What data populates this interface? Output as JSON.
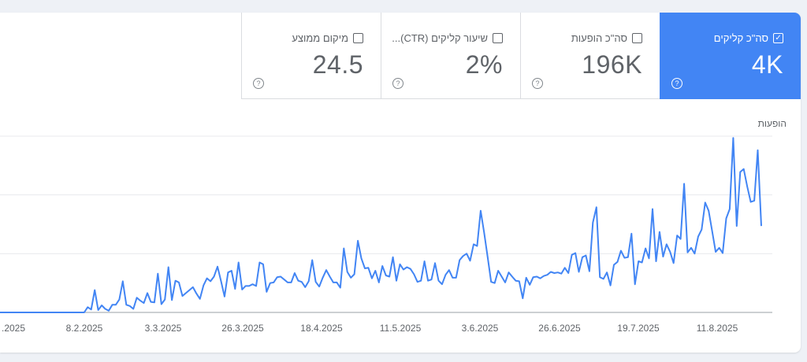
{
  "metrics": [
    {
      "label": "סה\"כ קליקים",
      "value": "4K",
      "checked": true
    },
    {
      "label": "סה\"כ הופעות",
      "value": "196K",
      "checked": false
    },
    {
      "label": "שיעור קליקים (CTR)...",
      "value": "2%",
      "checked": false
    },
    {
      "label": "מיקום ממוצע",
      "value": "24.5",
      "checked": false
    }
  ],
  "icons": {
    "checkbox_checked": "checkbox-checked-icon",
    "checkbox": "checkbox-icon",
    "help": "help-icon"
  },
  "help_glyph": "?",
  "colors": {
    "accent": "#4285f4",
    "line": "#4285f4",
    "grid": "#e8eaed"
  },
  "y_axis_title": "הופעות",
  "chart_data": {
    "type": "line",
    "title": "",
    "xlabel": "",
    "ylabel": "",
    "x_ticks": [
      ".2025",
      "8.2.2025",
      "3.3.2025",
      "26.3.2025",
      "18.4.2025",
      "11.5.2025",
      "3.6.2025",
      "26.6.2025",
      "19.7.2025",
      "11.8.2025"
    ],
    "x_start": "13.1.2025",
    "x_end": "20.8.2025",
    "ylim": [
      0,
      3
    ],
    "grid": true,
    "series": [
      {
        "values": [
          0,
          0,
          0,
          0,
          0,
          0,
          0,
          0,
          0,
          0,
          0,
          0,
          0,
          0,
          0,
          0,
          0,
          0,
          0,
          0,
          0,
          0,
          0,
          0,
          0,
          0.09,
          0.05,
          0.38,
          0.04,
          0.12,
          0.06,
          0.03,
          0.13,
          0.13,
          0.22,
          0.53,
          0.13,
          0.11,
          0.06,
          0.25,
          0.2,
          0.16,
          0.33,
          0.18,
          0.17,
          0.66,
          0.14,
          0.22,
          0.77,
          0.21,
          0.54,
          0.51,
          0.28,
          0.33,
          0.38,
          0.43,
          0.32,
          0.23,
          0.46,
          0.58,
          0.53,
          0.61,
          0.78,
          0.53,
          0.27,
          0.68,
          0.71,
          0.4,
          0.85,
          0.39,
          0.45,
          0.45,
          0.48,
          0.45,
          0.85,
          0.82,
          0.35,
          0.5,
          0.51,
          0.6,
          0.61,
          0.56,
          0.51,
          0.51,
          0.67,
          0.54,
          0.52,
          0.43,
          0.53,
          0.89,
          0.52,
          0.44,
          0.59,
          0.72,
          0.61,
          0.51,
          0.51,
          0.42,
          1.09,
          0.69,
          0.59,
          0.65,
          1.22,
          0.92,
          0.75,
          0.76,
          0.58,
          0.71,
          0.51,
          0.79,
          0.63,
          0.61,
          0.94,
          0.54,
          0.82,
          0.73,
          0.77,
          0.74,
          0.65,
          0.52,
          0.54,
          0.87,
          0.54,
          0.56,
          0.84,
          0.54,
          0.48,
          0.64,
          0.72,
          0.59,
          0.59,
          0.89,
          0.96,
          1.0,
          0.88,
          1.16,
          1.13,
          1.73,
          1.36,
          0.94,
          0.52,
          0.5,
          0.71,
          0.61,
          0.51,
          0.68,
          0.61,
          0.54,
          0.53,
          0.24,
          0.59,
          0.47,
          0.6,
          0.61,
          0.58,
          0.62,
          0.64,
          0.69,
          0.67,
          0.68,
          0.66,
          0.76,
          0.67,
          0.98,
          1.01,
          0.69,
          0.94,
          0.97,
          0.7,
          1.53,
          1.79,
          0.6,
          0.57,
          0.68,
          0.46,
          0.81,
          0.86,
          1.05,
          0.93,
          0.94,
          1.34,
          0.48,
          0.87,
          0.85,
          1.09,
          0.92,
          1.76,
          0.87,
          1.37,
          0.95,
          1.16,
          1.03,
          0.84,
          1.31,
          1.25,
          2.19,
          1.02,
          1.1,
          1.0,
          1.29,
          1.41,
          1.87,
          1.73,
          1.38,
          1.03,
          1.1,
          1.01,
          1.6,
          1.76,
          2.97,
          1.47,
          2.39,
          2.44,
          2.14,
          1.88,
          1.9,
          2.76,
          1.47
        ]
      }
    ]
  }
}
